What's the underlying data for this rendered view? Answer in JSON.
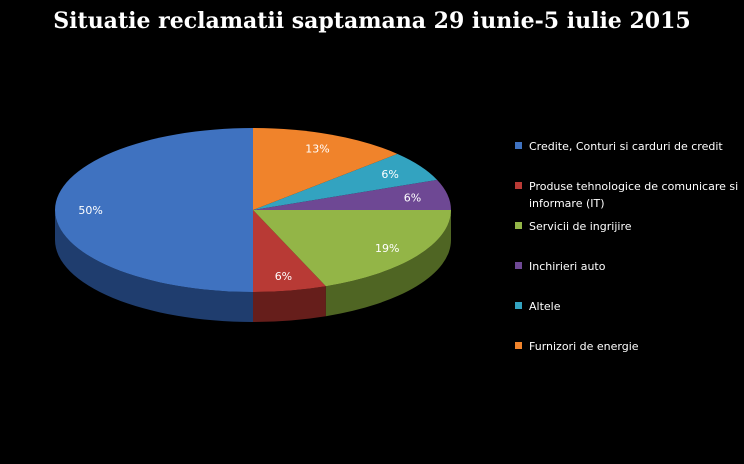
{
  "chart_data": {
    "type": "pie",
    "title": "Situatie reclamatii saptamana 29 iunie-5 iulie 2015",
    "categories": [
      "Credite, Conturi si carduri de credit",
      "Produse tehnologice de comunicare si informare (IT)",
      "Servicii de ingrijire",
      "Inchirieri auto",
      "Altele",
      "Furnizori de energie"
    ],
    "values": [
      50,
      6,
      19,
      6,
      6,
      13
    ],
    "data_labels": [
      "50%",
      "6%",
      "19%",
      "6%",
      "6%",
      "13%"
    ],
    "colors": [
      "#3f72c0",
      "#b83a35",
      "#93b547",
      "#6e4894",
      "#33a3c0",
      "#f0832b"
    ],
    "side_colors": [
      "#1f3d6e",
      "#661e1b",
      "#4f6523",
      "#3b244f",
      "#1a5e70",
      "#8e4813"
    ],
    "legend_position": "right",
    "style": "3d-pie"
  }
}
